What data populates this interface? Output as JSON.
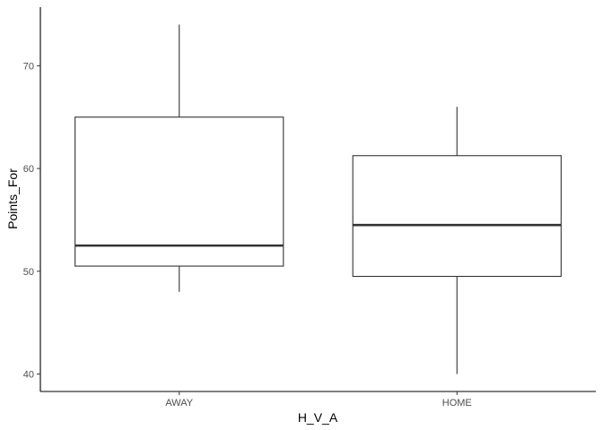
{
  "chart_data": {
    "type": "boxplot",
    "title": "",
    "xlabel": "H_V_A",
    "ylabel": "Points_For",
    "ylim": [
      38.3,
      75.7
    ],
    "yticks": [
      40,
      50,
      60,
      70
    ],
    "grid": false,
    "legend": "none",
    "categories": [
      "AWAY",
      "HOME"
    ],
    "boxes": [
      {
        "category": "AWAY",
        "min": 48,
        "q1": 50.5,
        "median": 52.5,
        "q3": 65,
        "max": 74
      },
      {
        "category": "HOME",
        "min": 40,
        "q1": 49.5,
        "median": 54.5,
        "q3": 61.25,
        "max": 66
      }
    ],
    "colors": {
      "box_line": "#333333",
      "box_fill": "#ffffff",
      "axis": "#000000",
      "tick_text": "#4d4d4d"
    }
  }
}
